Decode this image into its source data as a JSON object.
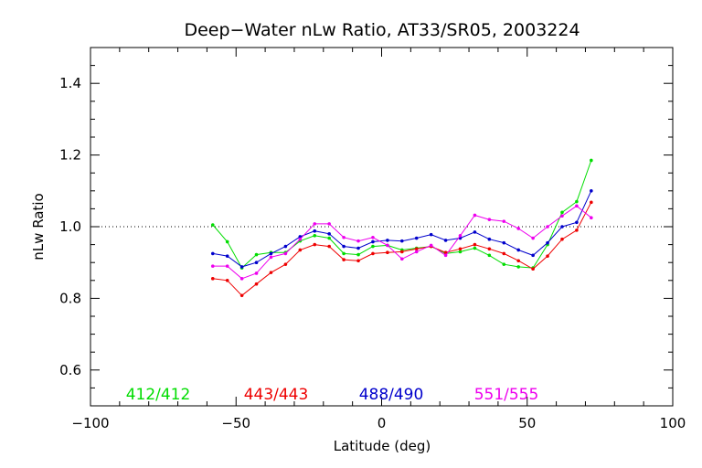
{
  "chart_data": {
    "type": "line",
    "title": "Deep−Water nLw Ratio, AT33/SR05, 2003224",
    "xlabel": "Latitude (deg)",
    "ylabel": "nLw Ratio",
    "xlim": [
      -100,
      100
    ],
    "ylim": [
      0.5,
      1.5
    ],
    "x_ticks": [
      -100,
      -50,
      0,
      50,
      100
    ],
    "x_tick_labels": [
      "−100",
      "−50",
      "0",
      "50",
      "100"
    ],
    "y_ticks": [
      0.6,
      0.8,
      1.0,
      1.2,
      1.4
    ],
    "y_tick_labels": [
      "0.6",
      "0.8",
      "1.0",
      "1.2",
      "1.4"
    ],
    "x_minor_step": 10,
    "y_minor_step": 0.05,
    "reference_line": 1.0,
    "x": [
      -58,
      -53,
      -48,
      -43,
      -38,
      -33,
      -28,
      -23,
      -18,
      -13,
      -8,
      -3,
      2,
      7,
      12,
      17,
      22,
      27,
      32,
      37,
      42,
      47,
      52,
      57,
      62,
      67,
      72
    ],
    "series": [
      {
        "name": "412/412",
        "color": "#00dd00",
        "values": [
          1.005,
          0.958,
          0.885,
          0.922,
          0.928,
          0.928,
          0.96,
          0.975,
          0.968,
          0.925,
          0.922,
          0.945,
          0.948,
          0.935,
          0.94,
          0.945,
          0.925,
          0.93,
          0.94,
          0.92,
          0.895,
          0.888,
          0.885,
          0.95,
          1.04,
          1.07,
          1.185
        ]
      },
      {
        "name": "443/443",
        "color": "#ee0000",
        "values": [
          0.855,
          0.85,
          0.808,
          0.84,
          0.872,
          0.895,
          0.935,
          0.95,
          0.945,
          0.908,
          0.905,
          0.925,
          0.928,
          0.93,
          0.938,
          0.945,
          0.928,
          0.938,
          0.95,
          0.938,
          0.925,
          0.905,
          0.882,
          0.918,
          0.965,
          0.99,
          1.068
        ]
      },
      {
        "name": "488/490",
        "color": "#0000cc",
        "values": [
          0.925,
          0.918,
          0.888,
          0.9,
          0.925,
          0.945,
          0.972,
          0.988,
          0.98,
          0.945,
          0.94,
          0.958,
          0.962,
          0.96,
          0.968,
          0.978,
          0.962,
          0.968,
          0.985,
          0.965,
          0.955,
          0.935,
          0.92,
          0.955,
          1.0,
          1.012,
          1.1
        ]
      },
      {
        "name": "551/555",
        "color": "#ee00ee",
        "values": [
          0.89,
          0.89,
          0.855,
          0.87,
          0.915,
          0.925,
          0.965,
          1.008,
          1.008,
          0.97,
          0.96,
          0.97,
          0.948,
          0.91,
          0.93,
          0.948,
          0.92,
          0.975,
          1.032,
          1.02,
          1.015,
          0.995,
          0.968,
          1.0,
          1.03,
          1.058,
          1.025
        ]
      }
    ],
    "legend_placement": "bottom-inside"
  }
}
